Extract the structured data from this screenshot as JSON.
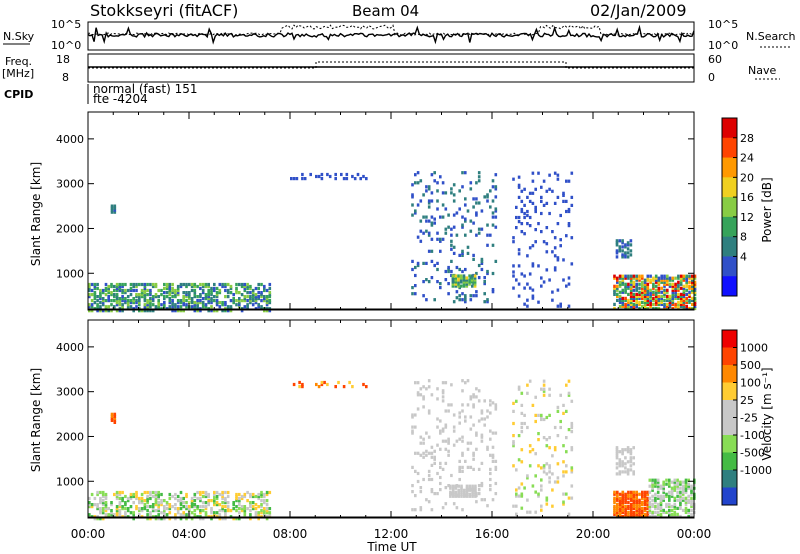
{
  "header": {
    "station": "Stokkseyri (fitACF)",
    "beam": "Beam 04",
    "date": "02/Jan/2009"
  },
  "noise_panel": {
    "left_label": "N.Sky",
    "right_label": "N.Search",
    "left_ticks": [
      "10^5",
      "10^0"
    ],
    "right_ticks": [
      "10^5",
      "10^0"
    ]
  },
  "freq_panel": {
    "left_label": "Freq.",
    "left_unit": "[MHz]",
    "right_label": "Nave",
    "left_ticks": [
      "18",
      "8"
    ],
    "right_ticks": [
      "60",
      "0"
    ]
  },
  "cpid": {
    "label": "CPID",
    "line1": "normal (fast) 151",
    "line2": "fte -4204"
  },
  "chart_data": [
    {
      "type": "heatmap",
      "name": "power",
      "ylabel": "Slant Range [km]",
      "xlabel": "",
      "xlim": [
        0,
        24
      ],
      "ylim": [
        180,
        4600
      ],
      "yticks": [
        1000,
        2000,
        3000,
        4000
      ],
      "colorbar_label": "Power [dB]",
      "colorbar_ticks": [
        "28",
        "24",
        "20",
        "16",
        "12",
        "8",
        "4"
      ],
      "colorbar_colors": [
        "#1010ff",
        "#3050c8",
        "#2f7f7f",
        "#36a35a",
        "#88cc44",
        "#f0d020",
        "#ff9900",
        "#ff4400",
        "#dd0000"
      ],
      "clusters": [
        {
          "x": [
            0,
            7.2
          ],
          "y": [
            200,
            800
          ],
          "color_index": [
            1,
            4
          ],
          "density": 0.55
        },
        {
          "x": [
            0.9,
            1.1
          ],
          "y": [
            2400,
            2550
          ],
          "color_index": [
            1,
            2
          ],
          "density": 0.9
        },
        {
          "x": [
            8,
            11
          ],
          "y": [
            3150,
            3280
          ],
          "color_index": [
            1,
            1
          ],
          "density": 0.3
        },
        {
          "x": [
            12.8,
            16.2
          ],
          "y": [
            400,
            3300
          ],
          "color_index": [
            1,
            2
          ],
          "density": 0.12
        },
        {
          "x": [
            14.4,
            15.3
          ],
          "y": [
            750,
            1000
          ],
          "color_index": [
            2,
            5
          ],
          "density": 0.9
        },
        {
          "x": [
            16.8,
            19.2
          ],
          "y": [
            300,
            3300
          ],
          "color_index": [
            1,
            1
          ],
          "density": 0.1
        },
        {
          "x": [
            20.8,
            24
          ],
          "y": [
            250,
            1000
          ],
          "color_index": [
            1,
            8
          ],
          "density": 0.75
        },
        {
          "x": [
            20.9,
            21.5
          ],
          "y": [
            1400,
            1800
          ],
          "color_index": [
            1,
            2
          ],
          "density": 0.5
        }
      ]
    },
    {
      "type": "heatmap",
      "name": "velocity",
      "ylabel": "Slant Range [km]",
      "xlabel": "Time UT",
      "xlim": [
        0,
        24
      ],
      "ylim": [
        180,
        4600
      ],
      "yticks": [
        1000,
        2000,
        3000,
        4000
      ],
      "xticks": [
        "00:00",
        "04:00",
        "08:00",
        "12:00",
        "16:00",
        "20:00",
        "00:00"
      ],
      "colorbar_label": "Velocity [m s⁻¹]",
      "colorbar_ticks": [
        "1000",
        "500",
        "100",
        "25",
        "-25",
        "-100",
        "-500",
        "-1000"
      ],
      "colorbar_colors": [
        "#2244cc",
        "#2f7f7f",
        "#44bb44",
        "#88dd55",
        "#c8c8c8",
        "#c8c8c8",
        "#ffcc33",
        "#ff8800",
        "#ff4400",
        "#ee0000"
      ],
      "clusters": [
        {
          "x": [
            0,
            7.2
          ],
          "y": [
            200,
            800
          ],
          "color_index": [
            2,
            6
          ],
          "density": 0.5
        },
        {
          "x": [
            0.9,
            1.1
          ],
          "y": [
            2350,
            2550
          ],
          "color_index": [
            7,
            8
          ],
          "density": 0.9
        },
        {
          "x": [
            8,
            11
          ],
          "y": [
            3150,
            3280
          ],
          "color_index": [
            6,
            8
          ],
          "density": 0.2
        },
        {
          "x": [
            12.8,
            16.2
          ],
          "y": [
            400,
            3300
          ],
          "color_index": [
            4,
            5
          ],
          "density": 0.12
        },
        {
          "x": [
            14.3,
            15.3
          ],
          "y": [
            700,
            950
          ],
          "color_index": [
            4,
            5
          ],
          "density": 0.95
        },
        {
          "x": [
            16.8,
            19.2
          ],
          "y": [
            300,
            3300
          ],
          "color_index": [
            3,
            6
          ],
          "density": 0.1
        },
        {
          "x": [
            20.8,
            22.2
          ],
          "y": [
            250,
            800
          ],
          "color_index": [
            7,
            8
          ],
          "density": 0.85
        },
        {
          "x": [
            22.2,
            24
          ],
          "y": [
            250,
            1100
          ],
          "color_index": [
            2,
            5
          ],
          "density": 0.6
        },
        {
          "x": [
            20.9,
            21.6
          ],
          "y": [
            1200,
            1800
          ],
          "color_index": [
            4,
            5
          ],
          "density": 0.5
        }
      ]
    }
  ]
}
